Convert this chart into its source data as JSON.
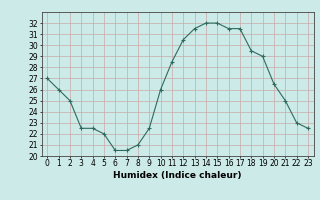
{
  "xlabel": "Humidex (Indice chaleur)",
  "x_values": [
    0,
    1,
    2,
    3,
    4,
    5,
    6,
    7,
    8,
    9,
    10,
    11,
    12,
    13,
    14,
    15,
    16,
    17,
    18,
    19,
    20,
    21,
    22,
    23
  ],
  "y_values": [
    27,
    26,
    25,
    22.5,
    22.5,
    22,
    20.5,
    20.5,
    21,
    22.5,
    26,
    28.5,
    30.5,
    31.5,
    32,
    32,
    31.5,
    31.5,
    29.5,
    29,
    26.5,
    25,
    23,
    22.5
  ],
  "ylim": [
    20,
    33
  ],
  "yticks": [
    20,
    21,
    22,
    23,
    24,
    25,
    26,
    27,
    28,
    29,
    30,
    31,
    32
  ],
  "line_color": "#2e6b5e",
  "marker": "+",
  "marker_size": 3,
  "bg_color": "#cceae8",
  "grid_color": "#c8aaaa",
  "label_fontsize": 6.5,
  "tick_fontsize": 5.5
}
